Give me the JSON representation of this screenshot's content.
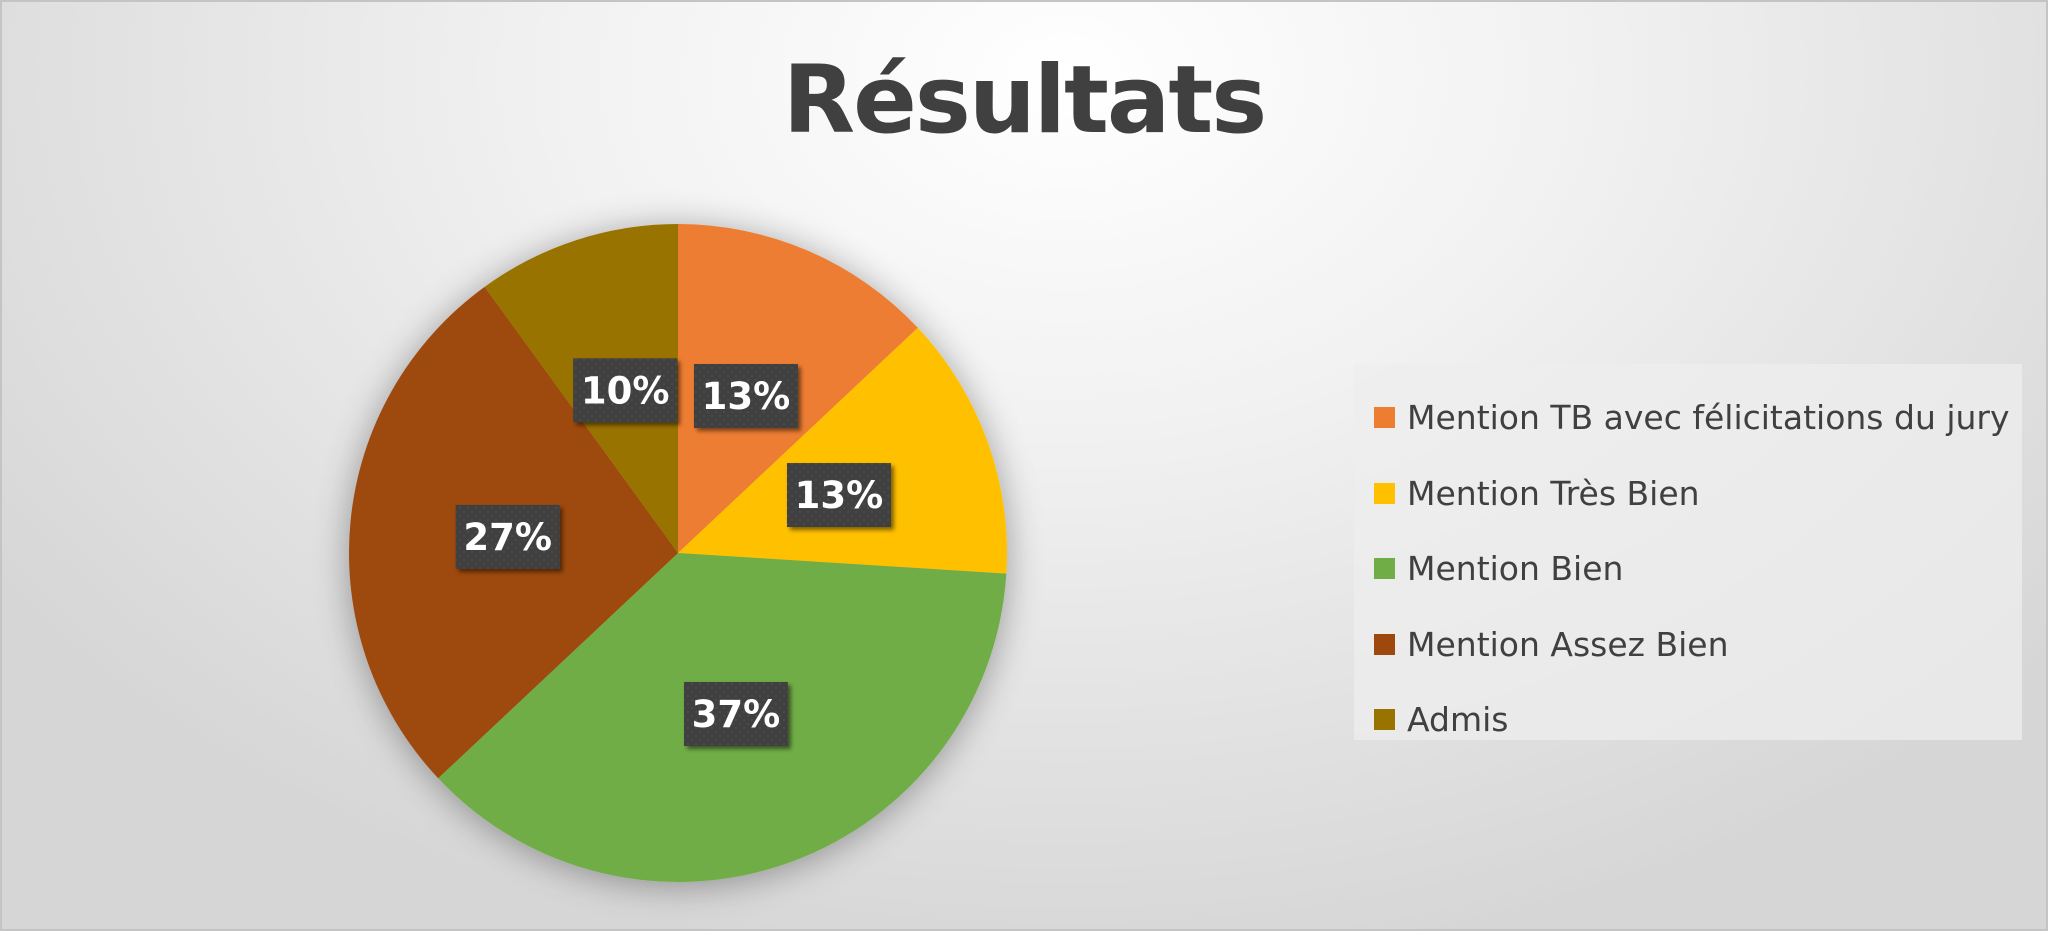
{
  "chart_data": {
    "type": "pie",
    "title": "Résultats",
    "start_angle_deg": 0,
    "direction": "clockwise",
    "categories": [
      "Mention TB avec félicitations du jury",
      "Mention Très Bien",
      "Mention Bien",
      "Mention Assez Bien",
      "Admis"
    ],
    "values": [
      13,
      13,
      37,
      27,
      10
    ],
    "data_labels": [
      "13%",
      "13%",
      "37%",
      "27%",
      "10%"
    ],
    "colors": [
      "#ED7D31",
      "#FFC000",
      "#70AD47",
      "#9E480E",
      "#997300"
    ],
    "label_box_color": "#404040",
    "legend": {
      "position": "right"
    }
  }
}
